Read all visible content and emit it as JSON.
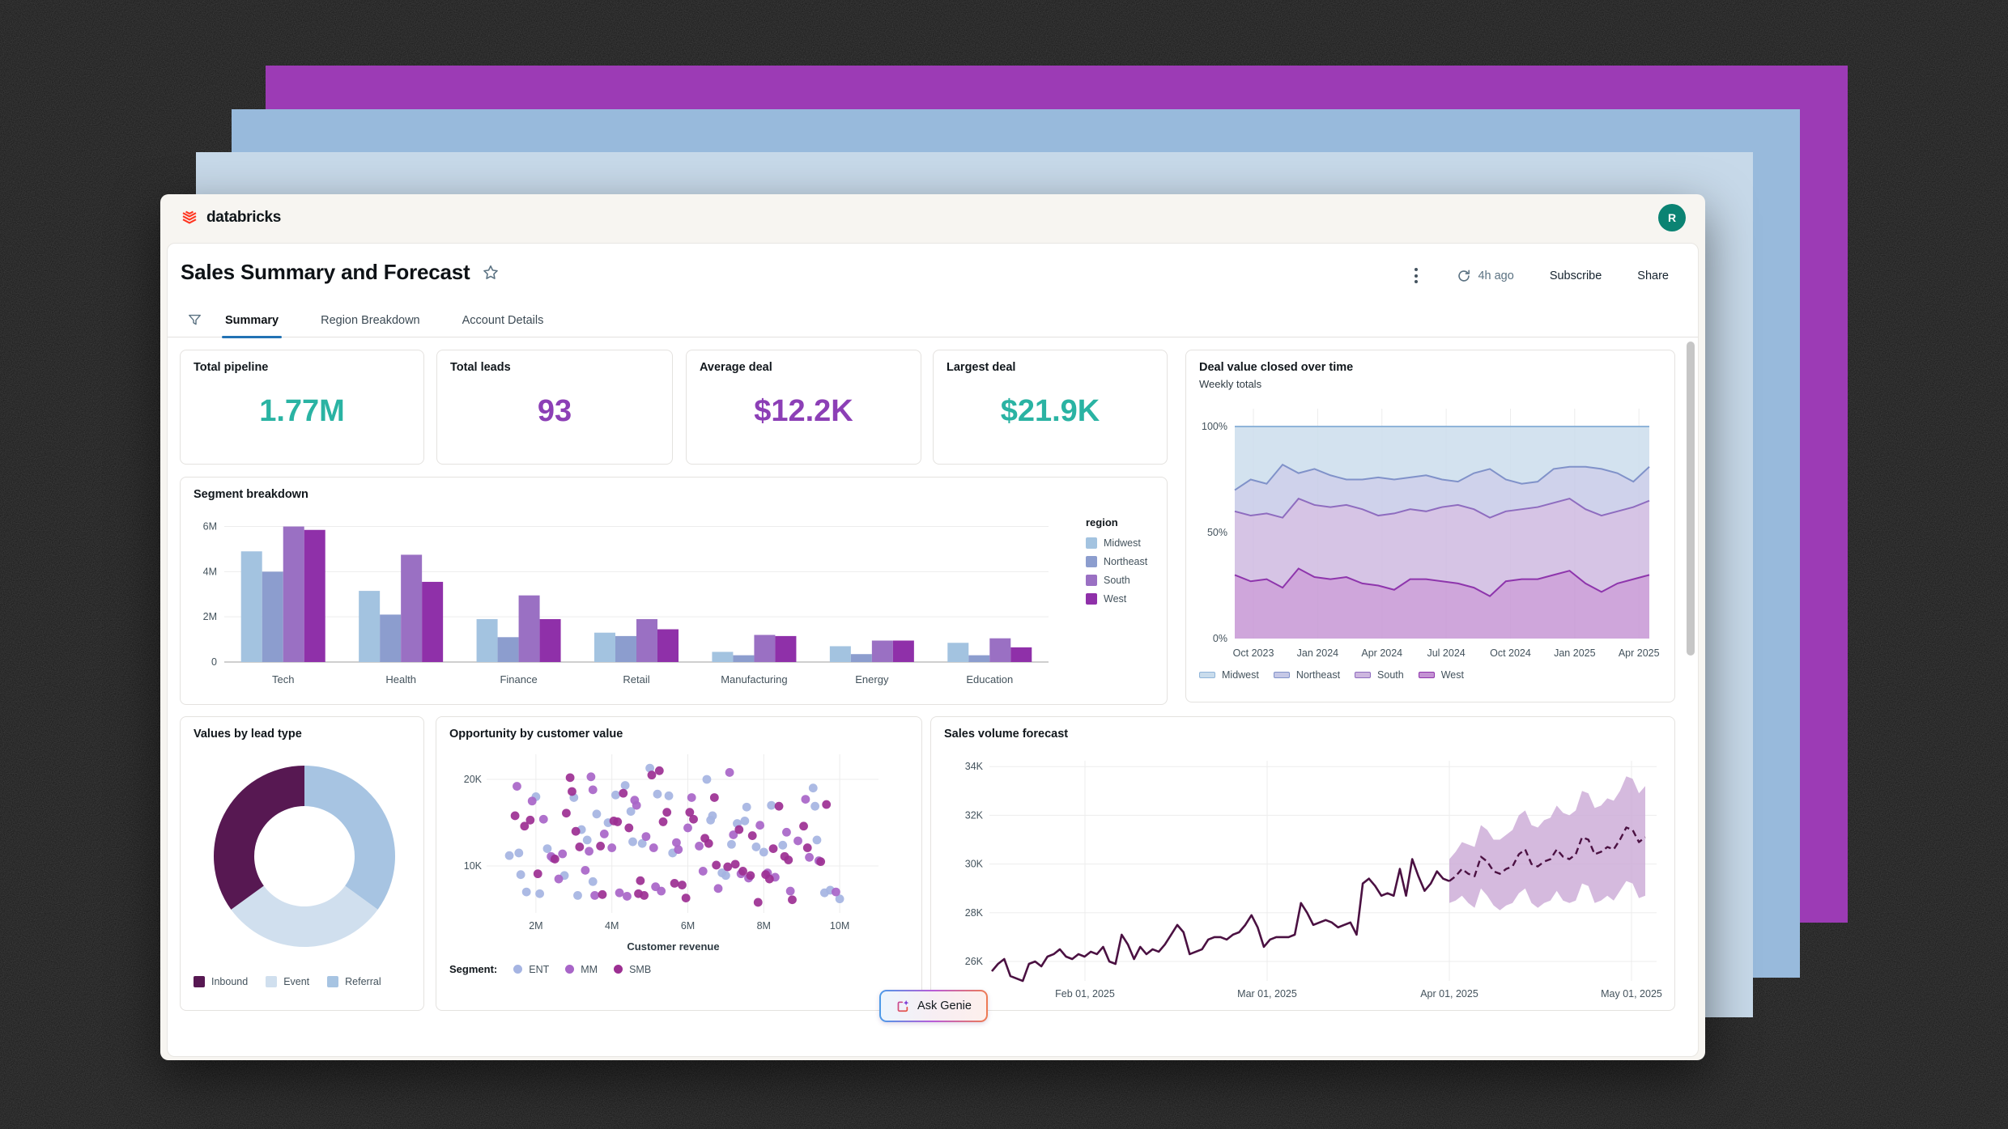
{
  "header": {
    "brand": "databricks",
    "avatar_initial": "R"
  },
  "page": {
    "title": "Sales Summary and Forecast"
  },
  "toolbar": {
    "refreshed": "4h ago",
    "subscribe_label": "Subscribe",
    "share_label": "Share"
  },
  "tabs": [
    {
      "label": "Summary",
      "active": true
    },
    {
      "label": "Region Breakdown",
      "active": false
    },
    {
      "label": "Account Details",
      "active": false
    }
  ],
  "kpis": [
    {
      "label": "Total pipeline",
      "value": "1.77M",
      "color": "#2AB3A3"
    },
    {
      "label": "Total leads",
      "value": "93",
      "color": "#8C3FB6"
    },
    {
      "label": "Average deal",
      "value": "$12.2K",
      "color": "#8C3FB6"
    },
    {
      "label": "Largest deal",
      "value": "$21.9K",
      "color": "#2AB3A3"
    }
  ],
  "segment_chart": {
    "type": "bar",
    "title": "Segment breakdown",
    "legend_title": "region",
    "categories": [
      "Tech",
      "Health",
      "Finance",
      "Retail",
      "Manufacturing",
      "Energy",
      "Education"
    ],
    "yticks": [
      "0",
      "2M",
      "4M",
      "6M"
    ],
    "ymax": 6.45,
    "series": [
      {
        "name": "Midwest",
        "color": "#A3C3E0",
        "values": [
          4.9,
          3.15,
          1.9,
          1.3,
          0.45,
          0.7,
          0.85
        ]
      },
      {
        "name": "Northeast",
        "color": "#8C9DCE",
        "values": [
          4.0,
          2.1,
          1.1,
          1.15,
          0.3,
          0.35,
          0.3
        ]
      },
      {
        "name": "South",
        "color": "#9A70C3",
        "values": [
          6.0,
          4.75,
          2.95,
          1.9,
          1.2,
          0.95,
          1.05
        ]
      },
      {
        "name": "West",
        "color": "#8F30A9",
        "values": [
          5.85,
          3.55,
          1.9,
          1.45,
          1.15,
          0.95,
          0.65
        ]
      }
    ]
  },
  "area_chart": {
    "type": "area",
    "title": "Deal value closed over time",
    "subtitle": "Weekly totals",
    "yticks": [
      "0%",
      "50%",
      "100%"
    ],
    "xticks": [
      "Oct 2023",
      "Jan 2024",
      "Apr 2024",
      "Jul 2024",
      "Oct 2024",
      "Jan 2025",
      "Apr 2025"
    ],
    "legend": [
      "Midwest",
      "Northeast",
      "South",
      "West"
    ],
    "note": "cumulative stacked percent boundaries, bottom to top: west, south, northeast; midwest fills to 100",
    "west": [
      30,
      27,
      28,
      24,
      33,
      29,
      28,
      29,
      26,
      25,
      23,
      28,
      28,
      27,
      26,
      24,
      20,
      27,
      28,
      28,
      30,
      32,
      26,
      22,
      26,
      28,
      30
    ],
    "south": [
      60,
      58,
      59,
      57,
      66,
      63,
      62,
      63,
      61,
      58,
      59,
      61,
      60,
      62,
      63,
      61,
      57,
      60,
      61,
      62,
      64,
      66,
      61,
      58,
      60,
      62,
      65
    ],
    "northeast": [
      70,
      75,
      73,
      82,
      78,
      80,
      77,
      75,
      75,
      76,
      75,
      76,
      77,
      75,
      74,
      78,
      80,
      75,
      73,
      74,
      80,
      81,
      81,
      80,
      78,
      74,
      81
    ],
    "fills": {
      "Midwest": "#C9DCEC",
      "Northeast": "#C5C8E6",
      "South": "#CDB7DF",
      "West": "#C492D3"
    },
    "lines": {
      "Midwest": "#8FB4D9",
      "Northeast": "#8092C9",
      "South": "#8E6CBF",
      "West": "#8E35AC"
    }
  },
  "donut_chart": {
    "type": "pie",
    "title": "Values by lead type",
    "slices": [
      {
        "label": "Inbound",
        "value": 35,
        "color": "#571852"
      },
      {
        "label": "Event",
        "value": 30,
        "color": "#D0DFEE"
      },
      {
        "label": "Referral",
        "value": 35,
        "color": "#A7C4E2"
      }
    ],
    "draw_order": [
      2,
      1,
      0
    ]
  },
  "scatter_chart": {
    "type": "scatter",
    "title": "Opportunity by customer value",
    "xlabel": "Customer revenue",
    "legend_label": "Segment:",
    "xticks": [
      "2M",
      "4M",
      "6M",
      "8M",
      "10M"
    ],
    "yticks": [
      "10K",
      "20K"
    ],
    "series": [
      {
        "name": "ENT",
        "color": "#A5B4E2",
        "points": [
          [
            1.3,
            11.2
          ],
          [
            1.55,
            11.5
          ],
          [
            1.6,
            9.0
          ],
          [
            1.75,
            7.0
          ],
          [
            2.0,
            18.0
          ],
          [
            2.1,
            6.8
          ],
          [
            2.3,
            12.0
          ],
          [
            2.75,
            8.9
          ],
          [
            3.0,
            17.9
          ],
          [
            3.1,
            6.6
          ],
          [
            3.2,
            14.2
          ],
          [
            3.35,
            13.0
          ],
          [
            3.5,
            8.2
          ],
          [
            3.6,
            16.0
          ],
          [
            3.9,
            15.0
          ],
          [
            4.1,
            18.2
          ],
          [
            4.35,
            19.3
          ],
          [
            4.5,
            16.3
          ],
          [
            4.55,
            12.8
          ],
          [
            4.8,
            12.6
          ],
          [
            5.0,
            21.3
          ],
          [
            5.2,
            18.3
          ],
          [
            5.5,
            18.1
          ],
          [
            5.6,
            11.5
          ],
          [
            6.5,
            20.0
          ],
          [
            6.6,
            15.3
          ],
          [
            6.65,
            15.8
          ],
          [
            6.9,
            9.2
          ],
          [
            7.0,
            8.9
          ],
          [
            7.15,
            12.5
          ],
          [
            7.3,
            14.9
          ],
          [
            7.5,
            15.2
          ],
          [
            7.55,
            16.8
          ],
          [
            7.8,
            12.2
          ],
          [
            8.0,
            11.6
          ],
          [
            8.2,
            17.0
          ],
          [
            8.5,
            12.4
          ],
          [
            9.3,
            19.0
          ],
          [
            9.35,
            16.9
          ],
          [
            9.4,
            13.0
          ],
          [
            9.6,
            6.9
          ],
          [
            9.75,
            7.2
          ],
          [
            10.0,
            6.2
          ]
        ]
      },
      {
        "name": "MM",
        "color": "#A865C8",
        "points": [
          [
            1.5,
            19.2
          ],
          [
            1.9,
            17.5
          ],
          [
            2.2,
            15.4
          ],
          [
            2.4,
            11.1
          ],
          [
            2.45,
            10.9
          ],
          [
            2.6,
            8.5
          ],
          [
            2.7,
            11.4
          ],
          [
            3.3,
            9.5
          ],
          [
            3.4,
            11.7
          ],
          [
            3.45,
            20.3
          ],
          [
            3.5,
            18.8
          ],
          [
            3.55,
            6.6
          ],
          [
            3.8,
            13.7
          ],
          [
            4.0,
            12.1
          ],
          [
            4.2,
            6.9
          ],
          [
            4.4,
            6.5
          ],
          [
            4.6,
            17.6
          ],
          [
            4.65,
            17.0
          ],
          [
            4.9,
            13.4
          ],
          [
            5.1,
            12.1
          ],
          [
            5.15,
            7.6
          ],
          [
            5.3,
            7.1
          ],
          [
            5.7,
            12.7
          ],
          [
            5.75,
            11.9
          ],
          [
            6.0,
            14.4
          ],
          [
            6.1,
            17.9
          ],
          [
            6.3,
            12.3
          ],
          [
            6.4,
            9.4
          ],
          [
            6.8,
            7.4
          ],
          [
            7.1,
            20.8
          ],
          [
            7.2,
            13.6
          ],
          [
            7.4,
            9.1
          ],
          [
            7.6,
            8.6
          ],
          [
            7.9,
            14.7
          ],
          [
            8.1,
            9.2
          ],
          [
            8.3,
            8.7
          ],
          [
            8.6,
            13.9
          ],
          [
            8.7,
            7.1
          ],
          [
            8.9,
            12.9
          ],
          [
            9.1,
            17.7
          ],
          [
            9.2,
            11.0
          ],
          [
            9.45,
            10.6
          ],
          [
            9.9,
            7.0
          ]
        ]
      },
      {
        "name": "SMB",
        "color": "#9C2F92",
        "points": [
          [
            1.45,
            15.8
          ],
          [
            1.7,
            14.6
          ],
          [
            1.85,
            15.3
          ],
          [
            2.05,
            9.1
          ],
          [
            2.5,
            10.8
          ],
          [
            2.8,
            16.1
          ],
          [
            2.9,
            20.2
          ],
          [
            2.95,
            18.6
          ],
          [
            3.05,
            14.0
          ],
          [
            3.15,
            12.2
          ],
          [
            3.7,
            12.3
          ],
          [
            3.75,
            6.7
          ],
          [
            4.05,
            15.2
          ],
          [
            4.15,
            15.1
          ],
          [
            4.3,
            18.4
          ],
          [
            4.45,
            14.4
          ],
          [
            4.7,
            6.8
          ],
          [
            4.75,
            8.3
          ],
          [
            4.85,
            6.6
          ],
          [
            5.05,
            20.5
          ],
          [
            5.25,
            21.0
          ],
          [
            5.35,
            15.1
          ],
          [
            5.45,
            16.2
          ],
          [
            5.65,
            8.0
          ],
          [
            5.85,
            7.8
          ],
          [
            5.95,
            6.3
          ],
          [
            6.05,
            16.2
          ],
          [
            6.15,
            15.4
          ],
          [
            6.45,
            13.2
          ],
          [
            6.55,
            12.6
          ],
          [
            6.7,
            17.9
          ],
          [
            6.75,
            10.1
          ],
          [
            7.05,
            9.9
          ],
          [
            7.25,
            10.2
          ],
          [
            7.35,
            14.2
          ],
          [
            7.45,
            9.4
          ],
          [
            7.65,
            8.9
          ],
          [
            7.7,
            13.5
          ],
          [
            7.85,
            5.8
          ],
          [
            8.05,
            9.0
          ],
          [
            8.15,
            8.5
          ],
          [
            8.25,
            12.0
          ],
          [
            8.4,
            16.9
          ],
          [
            8.55,
            11.1
          ],
          [
            8.65,
            10.7
          ],
          [
            8.75,
            6.1
          ],
          [
            9.05,
            14.6
          ],
          [
            9.15,
            12.1
          ],
          [
            9.5,
            10.5
          ],
          [
            9.65,
            17.1
          ]
        ]
      }
    ]
  },
  "forecast_chart": {
    "type": "line",
    "title": "Sales volume forecast",
    "yticks": [
      "26K",
      "28K",
      "30K",
      "32K",
      "34K"
    ],
    "xticks": [
      "Feb 01, 2025",
      "Mar 01, 2025",
      "Apr 01, 2025",
      "May 01, 2025"
    ],
    "unit": "K",
    "history": [
      25.6,
      25.9,
      26.1,
      25.4,
      25.3,
      25.2,
      25.9,
      26.0,
      25.8,
      26.2,
      26.3,
      26.5,
      26.2,
      26.1,
      26.3,
      26.2,
      26.4,
      26.3,
      26.6,
      26.0,
      25.9,
      27.1,
      26.7,
      26.1,
      26.6,
      26.3,
      26.5,
      26.4,
      26.7,
      27.1,
      27.5,
      27.2,
      26.3,
      26.4,
      26.5,
      26.9,
      27.0,
      27.0,
      26.9,
      27.1,
      27.2,
      27.5,
      27.9,
      27.4,
      26.6,
      26.9,
      27.0,
      27.0,
      27.0,
      27.1,
      28.4,
      28.0,
      27.5,
      27.6,
      27.7,
      27.6,
      27.4,
      27.5,
      27.6,
      27.1,
      29.2,
      29.4,
      29.1,
      28.7,
      28.8,
      28.7,
      29.8,
      28.7,
      30.2,
      29.5,
      28.9,
      29.2,
      29.7,
      29.4,
      29.3
    ],
    "forecast": {
      "mid": [
        29.3,
        29.5,
        29.8,
        29.6,
        29.5,
        30.3,
        30.1,
        29.7,
        29.6,
        29.8,
        29.9,
        30.4,
        30.6,
        30.0,
        29.9,
        30.1,
        30.2,
        30.6,
        30.3,
        30.2,
        30.4,
        31.1,
        31.0,
        30.4,
        30.5,
        30.7,
        30.6,
        31.0,
        31.5,
        31.4,
        30.9,
        31.1
      ],
      "lo": [
        28.4,
        28.5,
        28.7,
        28.4,
        28.2,
        29.0,
        28.7,
        28.3,
        28.1,
        28.3,
        28.4,
        28.8,
        29.0,
        28.4,
        28.2,
        28.4,
        28.5,
        28.9,
        28.5,
        28.4,
        28.5,
        29.2,
        29.1,
        28.4,
        28.5,
        28.7,
        28.5,
        28.9,
        29.3,
        29.2,
        28.6,
        28.7
      ],
      "hi": [
        30.2,
        30.5,
        30.9,
        30.8,
        30.7,
        31.6,
        31.4,
        31.0,
        31.0,
        31.2,
        31.4,
        32.0,
        32.2,
        31.6,
        31.5,
        31.8,
        31.9,
        32.4,
        32.1,
        32.0,
        32.2,
        33.0,
        32.9,
        32.3,
        32.4,
        32.7,
        32.6,
        33.0,
        33.6,
        33.5,
        32.9,
        33.2
      ]
    },
    "colors": {
      "line": "#4B1142",
      "band": "#CBA9D6"
    }
  },
  "ask_genie": {
    "label": "Ask Genie"
  },
  "brand_colors": {
    "databricks_red": "#FF3621",
    "tab_accent": "#2272B4",
    "avatar_teal": "#0B8373"
  }
}
